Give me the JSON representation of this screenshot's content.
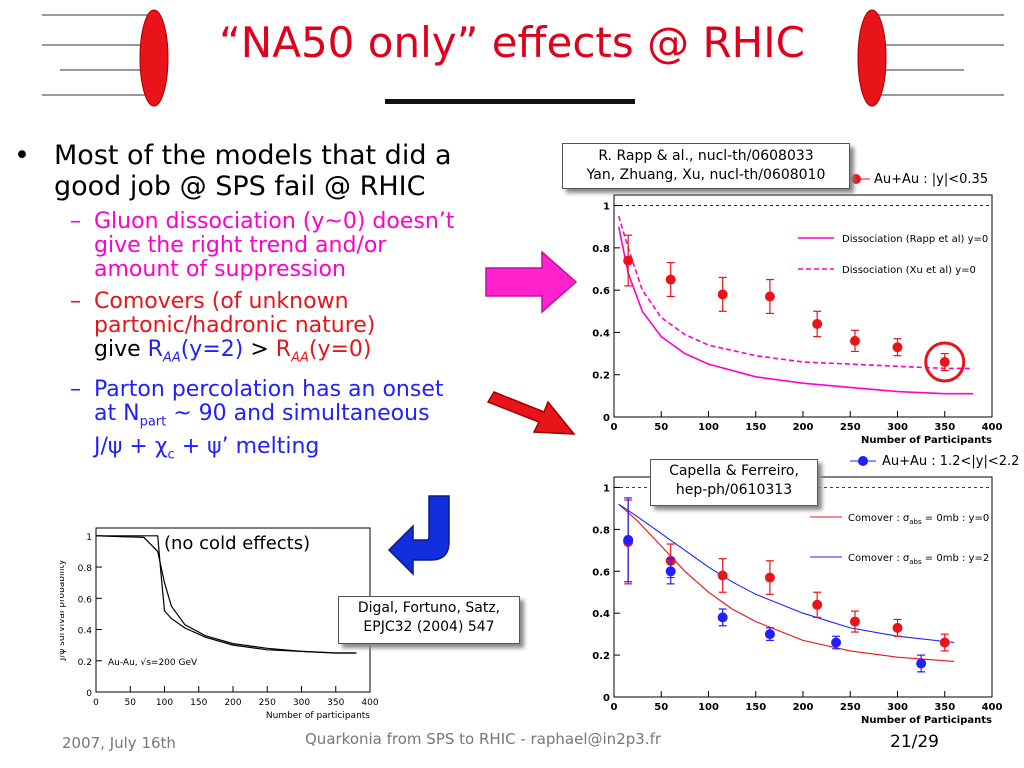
{
  "slide": {
    "title": "“NA50 only” effects @ RHIC",
    "footer": {
      "date": "2007, July 16th",
      "center": "Quarkonia from SPS to RHIC - raphael@in2p3.fr",
      "page": "21/29"
    },
    "bullet": {
      "marker": "•",
      "line1": "Most of the models that did a",
      "line2": "good job @ SPS fail @ RHIC"
    },
    "subs": {
      "dash": "–",
      "s1_line1": "Gluon dissociation (y~0) doesn’t",
      "s1_line2": "give the right trend and/or",
      "s1_line3": "amount of suppression",
      "s2_line1": "Comovers (of unknown",
      "s2_line2": "partonic/hadronic nature)",
      "s2_give": "give ",
      "s2_r": "R",
      "s2_aa": "AA",
      "s2_y2": "(y=2)",
      "s2_gt": " > ",
      "s2_y0": "(y=0)",
      "s3_line1": "Parton percolation has an onset",
      "s3_at": "at N",
      "s3_part": "part",
      "s3_rest": " ~ 90 and simultaneous",
      "s3_line3a": "J/ψ + χ",
      "s3_c": "c",
      "s3_line3b": " + ψ’ melting"
    },
    "callouts": {
      "rapp_line1": "R. Rapp & al., nucl-th/0608033",
      "rapp_line2": "Yan, Zhuang, Xu, nucl-th/0608010",
      "capella_line1": "Capella & Ferreiro,",
      "capella_line2": "hep-ph/0610313",
      "digal_line1": "Digal, Fortuno, Satz,",
      "digal_line2": "EPJC32 (2004) 547"
    },
    "colors": {
      "title": "#e0001b",
      "magenta": "#ff00cc",
      "red": "#e8141a",
      "blue": "#1f1fff",
      "arrow_blue": "#1030e0"
    }
  },
  "chart_data": [
    {
      "type": "scatter",
      "id": "top-right",
      "xlabel": "Number of Participants",
      "ylabel": "",
      "xlim": [
        0,
        400
      ],
      "ylim": [
        0,
        1.05
      ],
      "xticks": [
        0,
        50,
        100,
        150,
        200,
        250,
        300,
        350,
        400
      ],
      "yticks": [
        0,
        0.2,
        0.4,
        0.6,
        0.8,
        1
      ],
      "ref_line": 1,
      "legend": {
        "marker_label": "Au+Au : |y|<0.35",
        "curve1": "Dissociation (Rapp et al) y=0",
        "curve2": "Dissociation (Xu et al) y=0"
      },
      "series": [
        {
          "name": "Au+Au : |y|<0.35",
          "color": "#e8141a",
          "x": [
            15,
            60,
            115,
            165,
            215,
            255,
            300,
            350
          ],
          "y": [
            0.74,
            0.65,
            0.58,
            0.57,
            0.44,
            0.36,
            0.33,
            0.26
          ],
          "err": [
            0.12,
            0.08,
            0.08,
            0.08,
            0.06,
            0.05,
            0.04,
            0.04
          ]
        }
      ],
      "curves": [
        {
          "name": "Dissociation (Rapp et al) y=0",
          "style": "solid",
          "color": "#ff00cc",
          "x": [
            5,
            15,
            30,
            50,
            75,
            100,
            150,
            200,
            250,
            300,
            350,
            380
          ],
          "y": [
            0.9,
            0.68,
            0.5,
            0.38,
            0.3,
            0.25,
            0.19,
            0.16,
            0.14,
            0.12,
            0.11,
            0.11
          ]
        },
        {
          "name": "Dissociation (Xu et al) y=0",
          "style": "dashed",
          "color": "#ff00cc",
          "x": [
            5,
            15,
            30,
            50,
            75,
            100,
            150,
            200,
            250,
            300,
            350,
            380
          ],
          "y": [
            0.95,
            0.8,
            0.6,
            0.47,
            0.39,
            0.34,
            0.29,
            0.26,
            0.25,
            0.24,
            0.23,
            0.23
          ]
        }
      ]
    },
    {
      "type": "scatter",
      "id": "bottom-right",
      "xlabel": "Number of Participants",
      "ylabel": "",
      "xlim": [
        0,
        400
      ],
      "ylim": [
        0,
        1.05
      ],
      "xticks": [
        0,
        50,
        100,
        150,
        200,
        250,
        300,
        350,
        400
      ],
      "yticks": [
        0,
        0.2,
        0.4,
        0.6,
        0.8,
        1
      ],
      "ref_line": 1,
      "legend": {
        "marker_label": "Au+Au : 1.2<|y|<2.2",
        "curve1_a": "Comover : σ",
        "curve1_sub": "abs",
        "curve1_b": " = 0mb : y=0",
        "curve2_a": "Comover : σ",
        "curve2_sub": "abs",
        "curve2_b": " = 0mb : y=2"
      },
      "series": [
        {
          "name": "Au+Au : |y|<0.35",
          "color": "#e8141a",
          "x": [
            15,
            60,
            115,
            165,
            215,
            255,
            300,
            350
          ],
          "y": [
            0.74,
            0.65,
            0.58,
            0.57,
            0.44,
            0.36,
            0.33,
            0.26
          ],
          "err": [
            0.2,
            0.08,
            0.08,
            0.08,
            0.06,
            0.05,
            0.04,
            0.04
          ]
        },
        {
          "name": "Au+Au : 1.2<|y|<2.2",
          "color": "#1f1fff",
          "x": [
            15,
            60,
            115,
            165,
            235,
            325
          ],
          "y": [
            0.75,
            0.6,
            0.38,
            0.3,
            0.26,
            0.16
          ],
          "err": [
            0.2,
            0.06,
            0.04,
            0.03,
            0.03,
            0.04
          ]
        }
      ],
      "curves": [
        {
          "name": "Comover y=0",
          "style": "solid",
          "color": "#e8141a",
          "x": [
            5,
            25,
            50,
            75,
            100,
            125,
            150,
            200,
            250,
            300,
            360
          ],
          "y": [
            0.92,
            0.84,
            0.72,
            0.6,
            0.5,
            0.42,
            0.36,
            0.27,
            0.22,
            0.19,
            0.17
          ]
        },
        {
          "name": "Comover y=2",
          "style": "solid",
          "color": "#1f1fff",
          "x": [
            5,
            25,
            50,
            75,
            100,
            125,
            150,
            200,
            250,
            300,
            360
          ],
          "y": [
            0.92,
            0.86,
            0.78,
            0.7,
            0.62,
            0.55,
            0.49,
            0.4,
            0.33,
            0.29,
            0.26
          ]
        }
      ]
    },
    {
      "type": "line",
      "id": "bottom-left",
      "xlabel": "Number of participants",
      "ylabel": "J/ψ survival probability",
      "xlim": [
        0,
        400
      ],
      "ylim": [
        0,
        1.05
      ],
      "xticks": [
        0,
        50,
        100,
        150,
        200,
        250,
        300,
        350,
        400
      ],
      "yticks": [
        0,
        0.2,
        0.4,
        0.6,
        0.8,
        1
      ],
      "annotation": "(no cold effects)",
      "inset_label": "Au-Au, √s=200 GeV",
      "curves": [
        {
          "name": "sharp",
          "style": "solid",
          "color": "#000000",
          "x": [
            0,
            90,
            95,
            100,
            110,
            130,
            160,
            200,
            250,
            300,
            350,
            380
          ],
          "y": [
            1,
            1,
            0.75,
            0.52,
            0.47,
            0.41,
            0.35,
            0.3,
            0.27,
            0.26,
            0.25,
            0.25
          ]
        },
        {
          "name": "smooth",
          "style": "solid",
          "color": "#000000",
          "x": [
            0,
            70,
            90,
            100,
            110,
            130,
            160,
            200,
            250,
            300,
            350,
            380
          ],
          "y": [
            1,
            0.99,
            0.9,
            0.7,
            0.55,
            0.43,
            0.36,
            0.31,
            0.28,
            0.26,
            0.25,
            0.25
          ]
        }
      ]
    }
  ]
}
